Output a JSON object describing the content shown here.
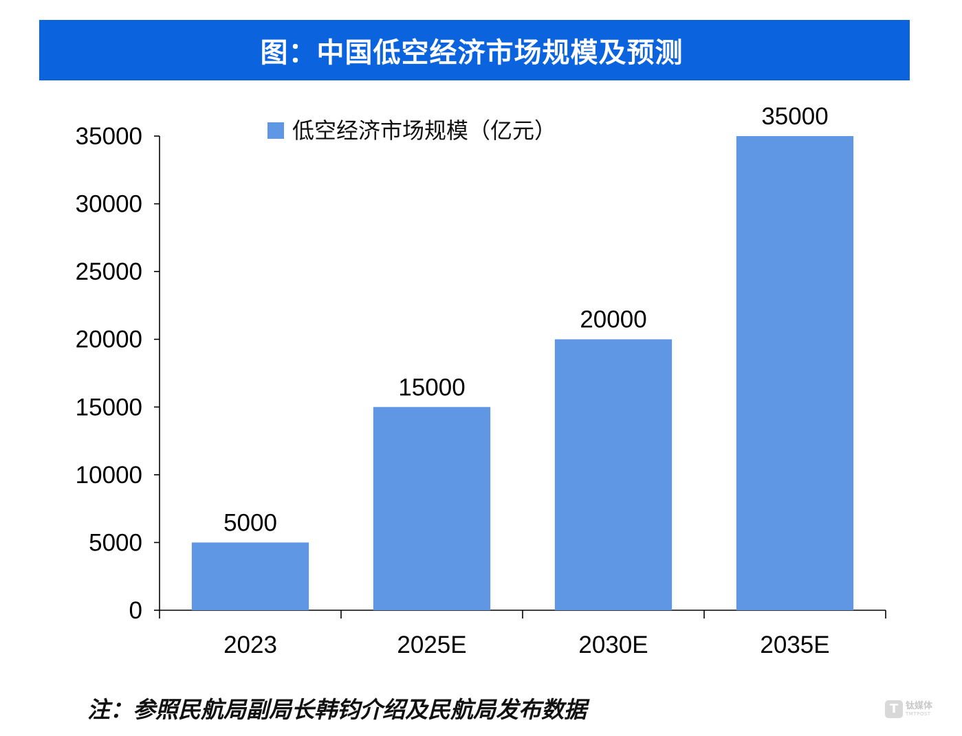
{
  "title": "图：中国低空经济市场规模及预测",
  "note": "注：参照民航局副局长韩钧介绍及民航局发布数据",
  "watermark": {
    "logo_letter": "T",
    "brand_cn": "钛媒体",
    "brand_en": "TMTPOST"
  },
  "colors": {
    "banner": "#0b63de",
    "bar": "#6097e4",
    "axis": "#000000"
  },
  "chart_data": {
    "type": "bar",
    "categories": [
      "2023",
      "2025E",
      "2030E",
      "2035E"
    ],
    "series": [
      {
        "name": "低空经济市场规模（亿元）",
        "values": [
          5000,
          15000,
          20000,
          35000
        ]
      }
    ],
    "data_labels": [
      "5000",
      "15000",
      "20000",
      "35000"
    ],
    "ylim": [
      0,
      35000
    ],
    "yticks": [
      0,
      5000,
      10000,
      15000,
      20000,
      25000,
      30000,
      35000
    ],
    "ytick_labels": [
      "0",
      "5000",
      "10000",
      "15000",
      "20000",
      "25000",
      "30000",
      "35000"
    ],
    "legend_position": "top-center",
    "grid": false,
    "xlabel": "",
    "ylabel": ""
  }
}
